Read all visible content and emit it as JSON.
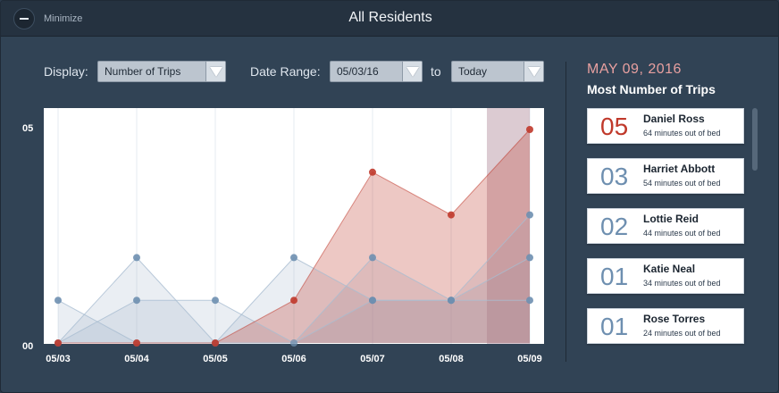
{
  "window": {
    "title": "All Residents",
    "minimize_label": "Minimize"
  },
  "controls": {
    "display_label": "Display:",
    "display_value": "Number of Trips",
    "date_range_label": "Date Range:",
    "date_from": "05/03/16",
    "to_label": "to",
    "date_to": "Today"
  },
  "chart_data": {
    "type": "area",
    "categories": [
      "05/03",
      "05/04",
      "05/05",
      "05/06",
      "05/07",
      "05/08",
      "05/09"
    ],
    "y_ticks": [
      "05",
      "00"
    ],
    "ylim": [
      0,
      5
    ],
    "highlight_category": "05/09",
    "series": [
      {
        "color": "#c0392b",
        "values": [
          0,
          0,
          0,
          1,
          4,
          3,
          5
        ]
      },
      {
        "color": "#6e8fb0",
        "values": [
          1,
          0,
          0,
          2,
          1,
          1,
          3
        ]
      },
      {
        "color": "#6e8fb0",
        "values": [
          0,
          2,
          0,
          0,
          2,
          1,
          2
        ]
      },
      {
        "color": "#6e8fb0",
        "values": [
          0,
          1,
          1,
          0,
          1,
          1,
          1
        ]
      }
    ]
  },
  "sidebar": {
    "date": "MAY 09, 2016",
    "subtitle": "Most Number of Trips",
    "residents": [
      {
        "count": "05",
        "name": "Daniel Ross",
        "detail": "64 minutes out of bed"
      },
      {
        "count": "03",
        "name": "Harriet Abbott",
        "detail": "54 minutes out of bed"
      },
      {
        "count": "02",
        "name": "Lottie Reid",
        "detail": "44 minutes out of bed"
      },
      {
        "count": "01",
        "name": "Katie Neal",
        "detail": "34 minutes out of bed"
      },
      {
        "count": "01",
        "name": "Rose Torres",
        "detail": "24 minutes out of bed"
      }
    ]
  }
}
